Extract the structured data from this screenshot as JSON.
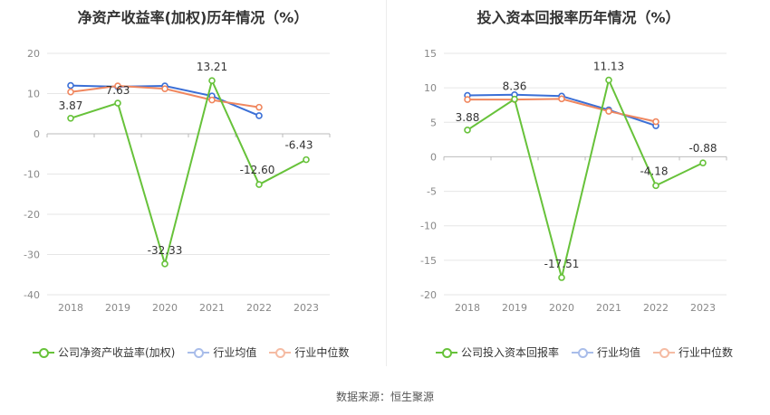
{
  "source": "数据来源：恒生聚源",
  "colors": {
    "company": "#67c23a",
    "avg": "#3b6fd6",
    "median": "#f0875f",
    "grid": "#e6e6e6",
    "axis": "#888888"
  },
  "chart_data": [
    {
      "type": "line",
      "title": "净资产收益率(加权)历年情况（%）",
      "categories": [
        "2018",
        "2019",
        "2020",
        "2021",
        "2022",
        "2023"
      ],
      "ylim": [
        -40,
        20
      ],
      "yticks": [
        20,
        10,
        0,
        -10,
        -20,
        -30,
        -40
      ],
      "ytick_labels": [
        "20",
        "10",
        "0",
        "-10",
        "-20",
        "-30",
        "-40"
      ],
      "series": [
        {
          "name": "公司净资产收益率(加权)",
          "values": [
            3.87,
            7.63,
            -32.33,
            13.21,
            -12.6,
            -6.43
          ],
          "labels": [
            "3.87",
            "7.63",
            "-32.33",
            "13.21",
            "-12.60",
            "-6.43"
          ]
        },
        {
          "name": "行业均值",
          "values": [
            12.0,
            11.7,
            11.9,
            9.4,
            4.5,
            null
          ]
        },
        {
          "name": "行业中位数",
          "values": [
            10.4,
            11.9,
            11.2,
            8.4,
            6.6,
            null
          ]
        }
      ]
    },
    {
      "type": "line",
      "title": "投入资本回报率历年情况（%）",
      "categories": [
        "2018",
        "2019",
        "2020",
        "2021",
        "2022",
        "2023"
      ],
      "ylim": [
        -20,
        15
      ],
      "yticks": [
        15,
        10,
        5,
        0,
        -5,
        -10,
        -15,
        -20
      ],
      "ytick_labels": [
        "15",
        "10",
        "5",
        "0",
        "-5",
        "-10",
        "-15",
        "-20"
      ],
      "series": [
        {
          "name": "公司投入资本回报率",
          "values": [
            3.88,
            8.36,
            -17.51,
            11.13,
            -4.18,
            -0.88
          ],
          "labels": [
            "3.88",
            "8.36",
            "-17.51",
            "11.13",
            "-4.18",
            "-0.88"
          ]
        },
        {
          "name": "行业均值",
          "values": [
            8.9,
            9.0,
            8.8,
            6.8,
            4.5,
            null
          ]
        },
        {
          "name": "行业中位数",
          "values": [
            8.3,
            8.3,
            8.4,
            6.6,
            5.1,
            null
          ]
        }
      ]
    }
  ]
}
